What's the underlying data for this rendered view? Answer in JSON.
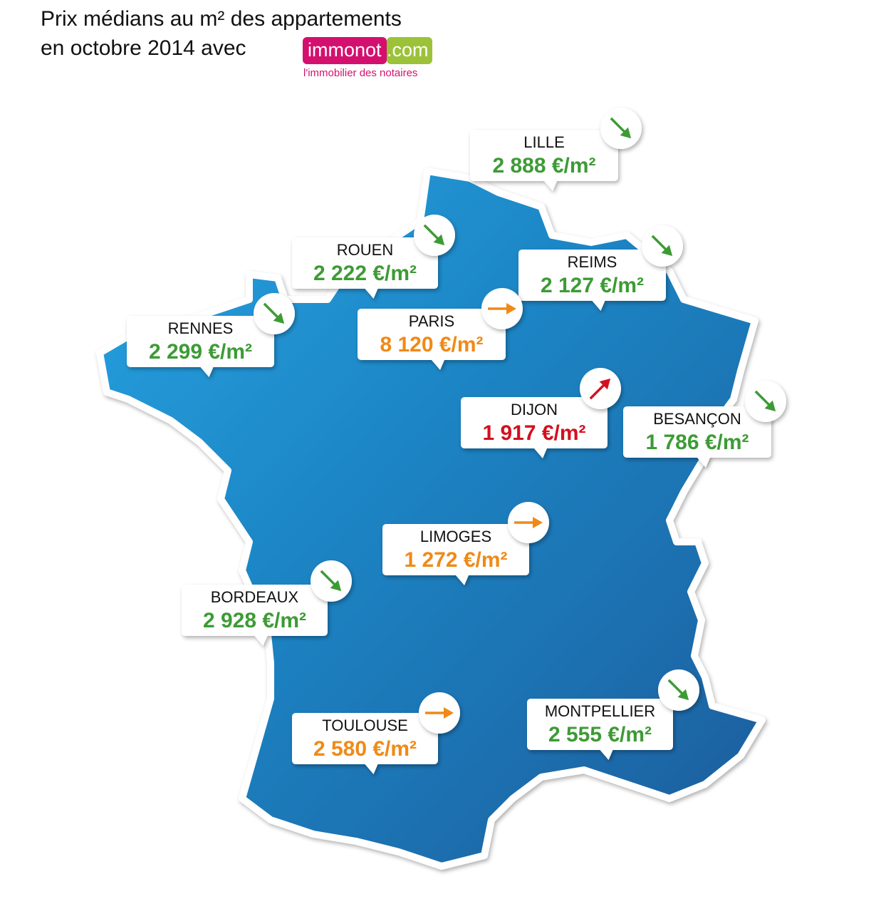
{
  "header": {
    "title_line1": "Prix médians au m² des appartements",
    "title_line2": "en octobre 2014 avec",
    "logo_main": "immonot",
    "logo_suffix": ".com",
    "logo_tagline": "l'immobilier des notaires"
  },
  "trend_colors": {
    "down": "#3d9b35",
    "stable": "#ef8a17",
    "up": "#d3101e"
  },
  "cities": [
    {
      "name": "LILLE",
      "price": "2 888 €/m²",
      "trend": "down"
    },
    {
      "name": "ROUEN",
      "price": "2 222 €/m²",
      "trend": "down"
    },
    {
      "name": "REIMS",
      "price": "2 127 €/m²",
      "trend": "down"
    },
    {
      "name": "RENNES",
      "price": "2 299 €/m²",
      "trend": "down"
    },
    {
      "name": "PARIS",
      "price": "8 120 €/m²",
      "trend": "stable"
    },
    {
      "name": "DIJON",
      "price": "1 917 €/m²",
      "trend": "up"
    },
    {
      "name": "BESANÇON",
      "price": "1 786 €/m²",
      "trend": "down"
    },
    {
      "name": "LIMOGES",
      "price": "1 272 €/m²",
      "trend": "stable"
    },
    {
      "name": "BORDEAUX",
      "price": "2 928 €/m²",
      "trend": "down"
    },
    {
      "name": "TOULOUSE",
      "price": "2 580 €/m²",
      "trend": "stable"
    },
    {
      "name": "MONTPELLIER",
      "price": "2 555 €/m²",
      "trend": "down"
    }
  ]
}
